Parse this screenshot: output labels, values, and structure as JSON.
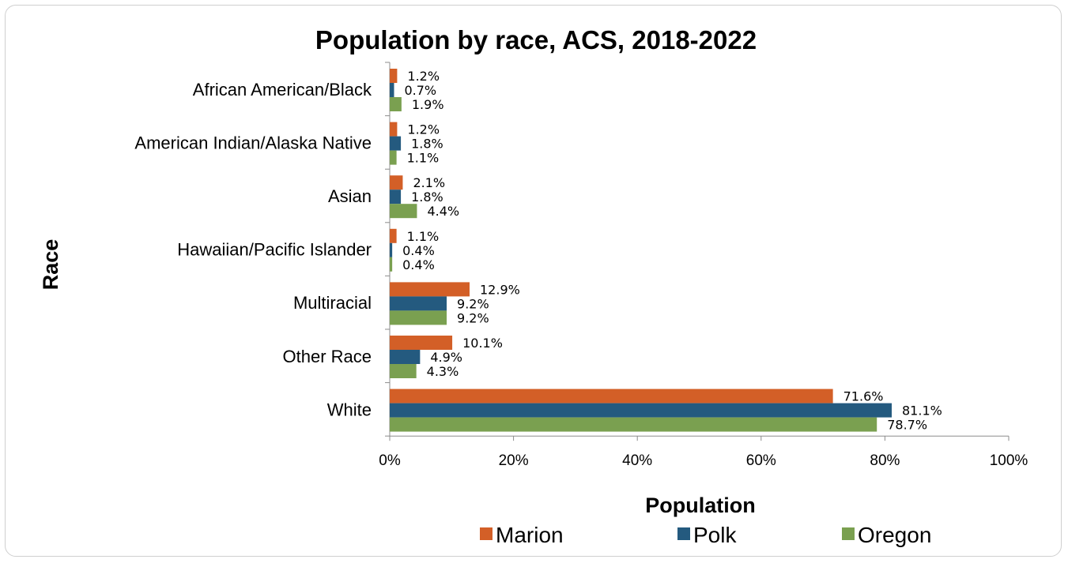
{
  "chart_data": {
    "type": "bar",
    "orientation": "horizontal",
    "title": "Population by race, ACS, 2018-2022",
    "xlabel": "Population",
    "ylabel": "Race",
    "categories": [
      "African American/Black",
      "American Indian/Alaska Native",
      "Asian",
      "Hawaiian/Pacific Islander",
      "Multiracial",
      "Other Race",
      "White"
    ],
    "series": [
      {
        "name": "Marion",
        "color": "#d35f27",
        "values": [
          1.2,
          1.2,
          2.1,
          1.1,
          12.9,
          10.1,
          71.6
        ],
        "labels": [
          "1.2%",
          "1.2%",
          "2.1%",
          "1.1%",
          "12.9%",
          "10.1%",
          "71.6%"
        ]
      },
      {
        "name": "Polk",
        "color": "#245a7f",
        "values": [
          0.7,
          1.8,
          1.8,
          0.4,
          9.2,
          4.9,
          81.1
        ],
        "labels": [
          "0.7%",
          "1.8%",
          "1.8%",
          "0.4%",
          "9.2%",
          "4.9%",
          "81.1%"
        ]
      },
      {
        "name": "Oregon",
        "color": "#7aa050",
        "values": [
          1.9,
          1.1,
          4.4,
          0.4,
          9.2,
          4.3,
          78.7
        ],
        "labels": [
          "1.9%",
          "1.1%",
          "4.4%",
          "0.4%",
          "9.2%",
          "4.3%",
          "78.7%"
        ]
      }
    ],
    "xlim": [
      0,
      100
    ],
    "xticks": [
      0,
      20,
      40,
      60,
      80,
      100
    ],
    "xtick_labels": [
      "0%",
      "20%",
      "40%",
      "60%",
      "80%",
      "100%"
    ],
    "grid": false,
    "legend_position": "bottom"
  }
}
